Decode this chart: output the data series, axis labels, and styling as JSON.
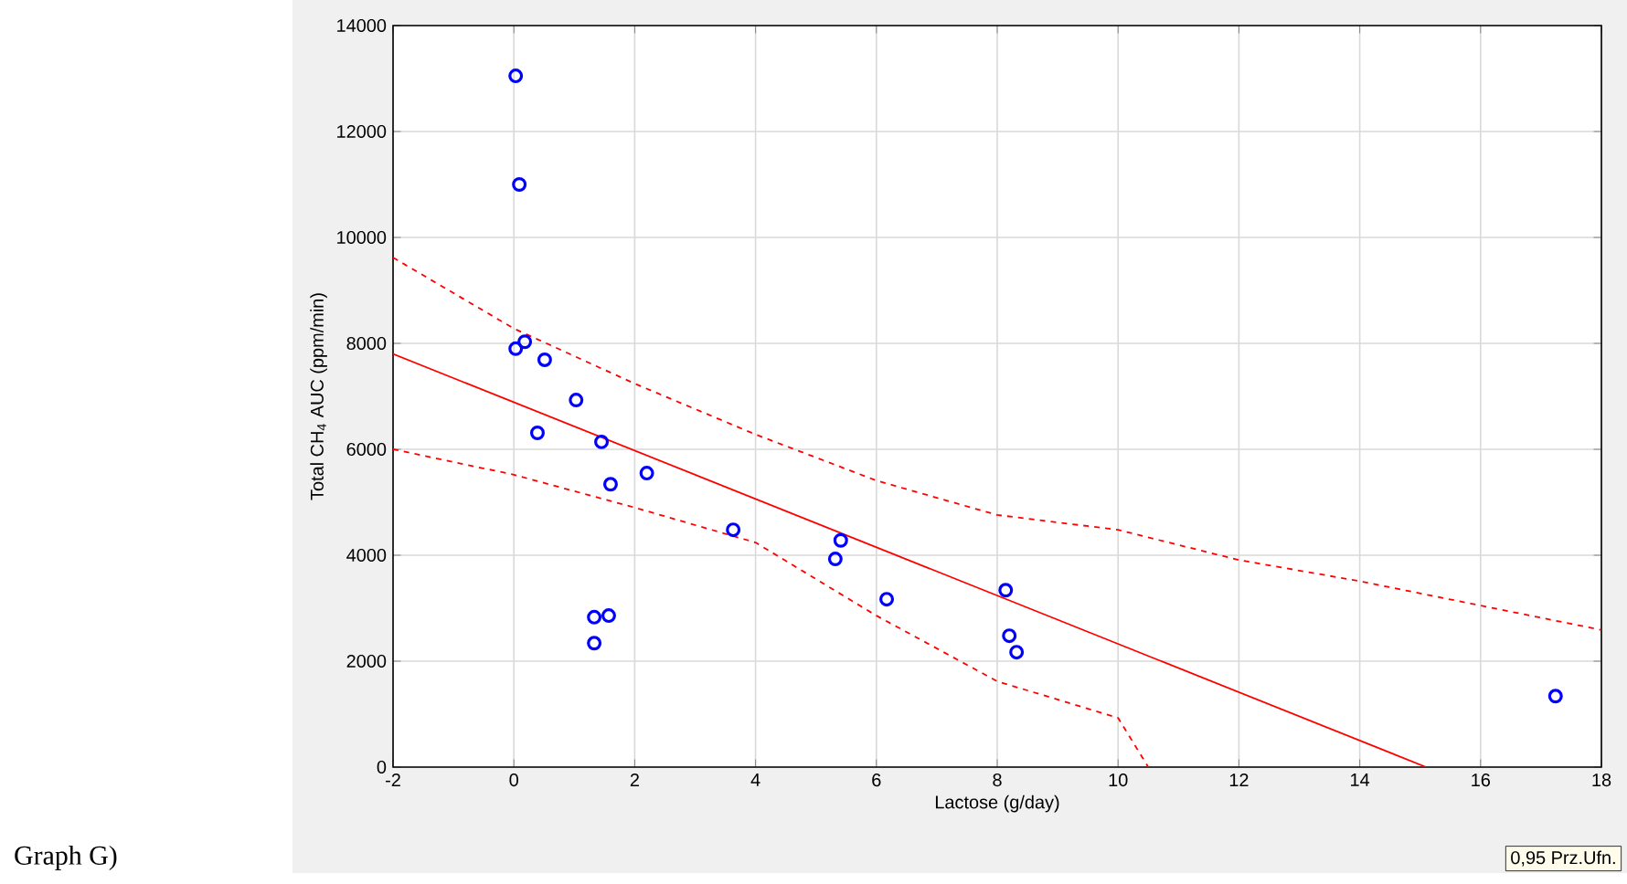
{
  "chart_data": {
    "type": "scatter",
    "xlabel": "Lactose (g/day)",
    "ylabel": "Total CH$_{4}$ AUC (ppm/min)",
    "xlim": [
      -2,
      18
    ],
    "xticks": [
      -2,
      0,
      2,
      4,
      6,
      8,
      10,
      12,
      14,
      16,
      18
    ],
    "ylim": [
      0,
      14000
    ],
    "yticks": [
      0,
      2000,
      4000,
      6000,
      8000,
      10000,
      12000,
      14000
    ],
    "grid": true,
    "series": [
      {
        "color": "#0000ff",
        "marker": "circle",
        "x": [
          0.03,
          0.09,
          0.03,
          0.18,
          0.51,
          1.03,
          0.39,
          1.45,
          1.6,
          2.2,
          3.63,
          5.41,
          5.32,
          6.17,
          8.14,
          8.2,
          8.32,
          1.33,
          1.57,
          1.33,
          17.24
        ],
        "values": [
          13050,
          11000,
          7900,
          8030,
          7690,
          6930,
          6310,
          6140,
          5340,
          5550,
          4480,
          4280,
          3930,
          3170,
          3340,
          2480,
          2170,
          2830,
          2860,
          2340,
          1340
        ]
      },
      {
        "type": "line",
        "color": "#ff0000",
        "line_style": "solid",
        "x": [
          -2,
          15.1
        ],
        "values": [
          7800,
          0
        ]
      },
      {
        "type": "line",
        "color": "#ff0000",
        "line_style": "dashed",
        "x": [
          -2,
          0,
          2,
          4,
          6,
          8,
          10,
          12,
          14,
          18
        ],
        "values": [
          9620,
          8280,
          7240,
          6280,
          5410,
          4760,
          4480,
          3910,
          3510,
          2590
        ]
      },
      {
        "type": "line",
        "color": "#ff0000",
        "line_style": "dashed",
        "x": [
          -2,
          0,
          2,
          4,
          6,
          8,
          10,
          10.5
        ],
        "values": [
          6000,
          5520,
          4900,
          4240,
          2860,
          1620,
          930,
          0
        ]
      }
    ],
    "annotations": [
      "Graph G)",
      "0,95 Prz.Ufn."
    ]
  }
}
